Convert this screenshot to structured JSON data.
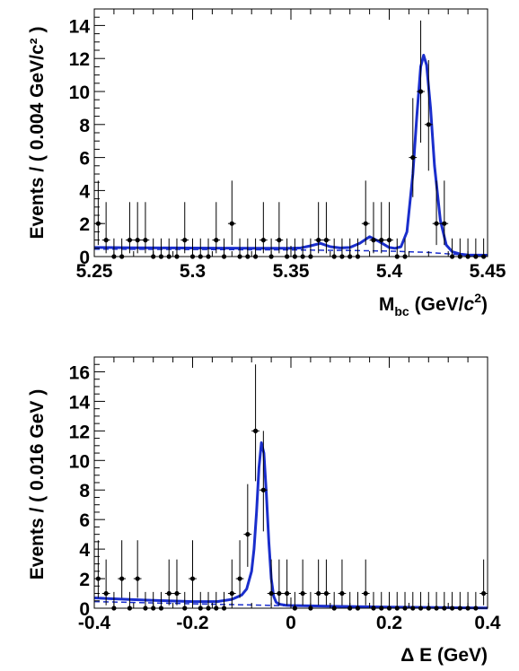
{
  "chart_data": [
    {
      "type": "scatter",
      "xlabel": "M",
      "xlabel_sub": "bc",
      "xlabel_unit_pre": "(GeV/",
      "xlabel_unit_c": "c",
      "xlabel_unit_sup": "2",
      "xlabel_unit_post": ")",
      "ylabel": "Events / ( 0.004 GeV/c² )",
      "xlim": [
        5.25,
        5.45
      ],
      "ylim": [
        0,
        15
      ],
      "x_ticks": [
        5.25,
        5.3,
        5.35,
        5.4,
        5.45
      ],
      "x_tick_labels": [
        "5.25",
        "5.3",
        "5.35",
        "5.4",
        "5.45"
      ],
      "y_ticks": [
        0,
        2,
        4,
        6,
        8,
        10,
        12,
        14
      ],
      "y_tick_labels": [
        "0",
        "2",
        "4",
        "6",
        "8",
        "10",
        "12",
        "14"
      ],
      "bin_half_width": 0.002,
      "points": {
        "x": [
          5.252,
          5.256,
          5.26,
          5.264,
          5.268,
          5.272,
          5.276,
          5.28,
          5.284,
          5.288,
          5.292,
          5.296,
          5.3,
          5.304,
          5.308,
          5.312,
          5.316,
          5.32,
          5.324,
          5.328,
          5.332,
          5.336,
          5.34,
          5.344,
          5.348,
          5.352,
          5.356,
          5.36,
          5.364,
          5.368,
          5.372,
          5.376,
          5.38,
          5.384,
          5.388,
          5.392,
          5.396,
          5.4,
          5.404,
          5.408,
          5.412,
          5.416,
          5.42,
          5.424,
          5.428,
          5.432,
          5.436,
          5.44,
          5.444,
          5.448
        ],
        "y": [
          2,
          1,
          0,
          0,
          1,
          1,
          1,
          0,
          0,
          0,
          0,
          1,
          0,
          0,
          0,
          1,
          0,
          2,
          0,
          0,
          0,
          1,
          0,
          1,
          0,
          0,
          0,
          0,
          1,
          1,
          0,
          0,
          0,
          0,
          2,
          1,
          1,
          1,
          0,
          0,
          6,
          10,
          8,
          2,
          2,
          0,
          0,
          0,
          0,
          0
        ],
        "err_up": [
          2.6,
          2.3,
          1.1,
          1.1,
          2.3,
          2.3,
          2.3,
          1.1,
          1.1,
          1.1,
          1.1,
          2.3,
          1.1,
          1.1,
          1.1,
          2.3,
          1.1,
          2.6,
          1.1,
          1.1,
          1.1,
          2.3,
          1.1,
          2.3,
          1.1,
          1.1,
          1.1,
          1.1,
          2.3,
          2.3,
          1.1,
          1.1,
          1.1,
          1.1,
          2.6,
          2.3,
          2.3,
          2.3,
          1.1,
          1.1,
          3.6,
          4.3,
          3.9,
          2.6,
          2.6,
          1.1,
          1.1,
          1.1,
          1.1,
          1.1
        ],
        "err_dn": [
          1.3,
          0.8,
          0,
          0,
          0.8,
          0.8,
          0.8,
          0,
          0,
          0,
          0,
          0.8,
          0,
          0,
          0,
          0.8,
          0,
          1.3,
          0,
          0,
          0,
          0.8,
          0,
          0.8,
          0,
          0,
          0,
          0,
          0.8,
          0.8,
          0,
          0,
          0,
          0,
          1.3,
          0.8,
          0.8,
          0.8,
          0,
          0,
          2.4,
          3.1,
          2.8,
          1.3,
          1.3,
          0,
          0,
          0,
          0,
          0
        ]
      },
      "fit_curve": {
        "x": [
          5.25,
          5.27,
          5.29,
          5.31,
          5.33,
          5.35,
          5.355,
          5.36,
          5.365,
          5.37,
          5.375,
          5.38,
          5.385,
          5.39,
          5.395,
          5.4,
          5.403,
          5.406,
          5.409,
          5.412,
          5.414,
          5.416,
          5.4175,
          5.419,
          5.421,
          5.423,
          5.426,
          5.429,
          5.432,
          5.436,
          5.44,
          5.45
        ],
        "y": [
          0.55,
          0.53,
          0.52,
          0.51,
          0.5,
          0.5,
          0.52,
          0.65,
          0.8,
          0.6,
          0.52,
          0.55,
          0.8,
          1.2,
          0.9,
          0.55,
          0.5,
          0.6,
          1.5,
          5.0,
          8.5,
          11.5,
          12.2,
          11.6,
          9.0,
          5.5,
          2.2,
          0.7,
          0.3,
          0.15,
          0.1,
          0.08
        ]
      },
      "background_curve": {
        "x": [
          5.25,
          5.3,
          5.35,
          5.38,
          5.4,
          5.42,
          5.435,
          5.45
        ],
        "y": [
          0.45,
          0.43,
          0.4,
          0.37,
          0.33,
          0.25,
          0.12,
          0.04
        ]
      },
      "series_colors": {
        "fit": "#1a2ecc",
        "background": "#1a2ecc",
        "points": "#000000"
      }
    },
    {
      "type": "scatter",
      "xlabel": "Δ E (GeV)",
      "ylabel": "Events / ( 0.016 GeV )",
      "xlim": [
        -0.4,
        0.4
      ],
      "ylim": [
        0,
        17
      ],
      "x_ticks": [
        -0.4,
        -0.2,
        0,
        0.2,
        0.4
      ],
      "x_tick_labels": [
        "-0.4",
        "-0.2",
        "0",
        "0.2",
        "0.4"
      ],
      "y_ticks": [
        0,
        2,
        4,
        6,
        8,
        10,
        12,
        14,
        16
      ],
      "y_tick_labels": [
        "0",
        "2",
        "4",
        "6",
        "8",
        "10",
        "12",
        "14",
        "16"
      ],
      "bin_half_width": 0.008,
      "points": {
        "x": [
          -0.392,
          -0.376,
          -0.36,
          -0.344,
          -0.328,
          -0.312,
          -0.296,
          -0.28,
          -0.264,
          -0.248,
          -0.232,
          -0.216,
          -0.2,
          -0.184,
          -0.168,
          -0.152,
          -0.136,
          -0.12,
          -0.104,
          -0.088,
          -0.072,
          -0.056,
          -0.04,
          -0.024,
          -0.008,
          0.008,
          0.024,
          0.04,
          0.056,
          0.072,
          0.088,
          0.104,
          0.12,
          0.136,
          0.152,
          0.168,
          0.184,
          0.2,
          0.216,
          0.232,
          0.248,
          0.264,
          0.28,
          0.296,
          0.312,
          0.328,
          0.344,
          0.36,
          0.376,
          0.392
        ],
        "y": [
          2,
          1,
          0,
          2,
          0,
          2,
          0,
          0,
          0,
          1,
          1,
          0,
          2,
          0,
          0,
          0,
          0,
          1,
          2,
          5,
          12,
          8,
          1,
          1,
          1,
          0,
          1,
          0,
          1,
          1,
          0,
          1,
          0,
          0,
          1,
          0,
          0,
          0,
          0,
          0,
          0,
          0,
          0,
          0,
          0,
          0,
          0,
          0,
          0,
          1
        ],
        "err_up": [
          2.6,
          2.3,
          1.1,
          2.6,
          1.1,
          2.6,
          1.1,
          1.1,
          1.1,
          2.3,
          2.3,
          1.1,
          2.6,
          1.1,
          1.1,
          1.1,
          1.1,
          2.3,
          2.6,
          3.4,
          4.5,
          4.0,
          2.3,
          2.3,
          2.3,
          1.1,
          2.3,
          1.1,
          2.3,
          2.3,
          1.1,
          2.3,
          1.1,
          1.1,
          2.3,
          1.1,
          1.1,
          1.1,
          1.1,
          1.1,
          1.1,
          1.1,
          1.1,
          1.1,
          1.1,
          1.1,
          1.1,
          1.1,
          1.1,
          2.3
        ],
        "err_dn": [
          1.3,
          0.8,
          0,
          1.3,
          0,
          1.3,
          0,
          0,
          0,
          0.8,
          0.8,
          0,
          1.3,
          0,
          0,
          0,
          0,
          0.8,
          1.3,
          2.2,
          3.4,
          2.8,
          0.8,
          0.8,
          0.8,
          0,
          0.8,
          0,
          0.8,
          0.8,
          0,
          0.8,
          0,
          0,
          0.8,
          0,
          0,
          0,
          0,
          0,
          0,
          0,
          0,
          0,
          0,
          0,
          0,
          0,
          0,
          0.8
        ]
      },
      "fit_curve": {
        "x": [
          -0.4,
          -0.35,
          -0.3,
          -0.25,
          -0.2,
          -0.15,
          -0.12,
          -0.1,
          -0.09,
          -0.08,
          -0.075,
          -0.07,
          -0.065,
          -0.06,
          -0.055,
          -0.05,
          -0.045,
          -0.04,
          -0.035,
          -0.03,
          -0.025,
          -0.02,
          -0.01,
          0,
          0.1,
          0.2,
          0.3,
          0.4
        ],
        "y": [
          0.7,
          0.62,
          0.55,
          0.5,
          0.45,
          0.45,
          0.6,
          0.9,
          1.3,
          2.5,
          4.0,
          6.5,
          9.5,
          11.2,
          10.5,
          7.8,
          4.5,
          2.0,
          0.8,
          0.4,
          0.3,
          0.25,
          0.2,
          0.18,
          0.12,
          0.07,
          0.04,
          0.02
        ]
      },
      "background_curve": {
        "x": [
          -0.4,
          -0.2,
          -0.05,
          0,
          0.2,
          0.4
        ],
        "y": [
          0.45,
          0.3,
          0.2,
          0.15,
          0.08,
          0.03
        ]
      },
      "series_colors": {
        "fit": "#1a2ecc",
        "background": "#1a2ecc",
        "points": "#000000"
      }
    }
  ]
}
